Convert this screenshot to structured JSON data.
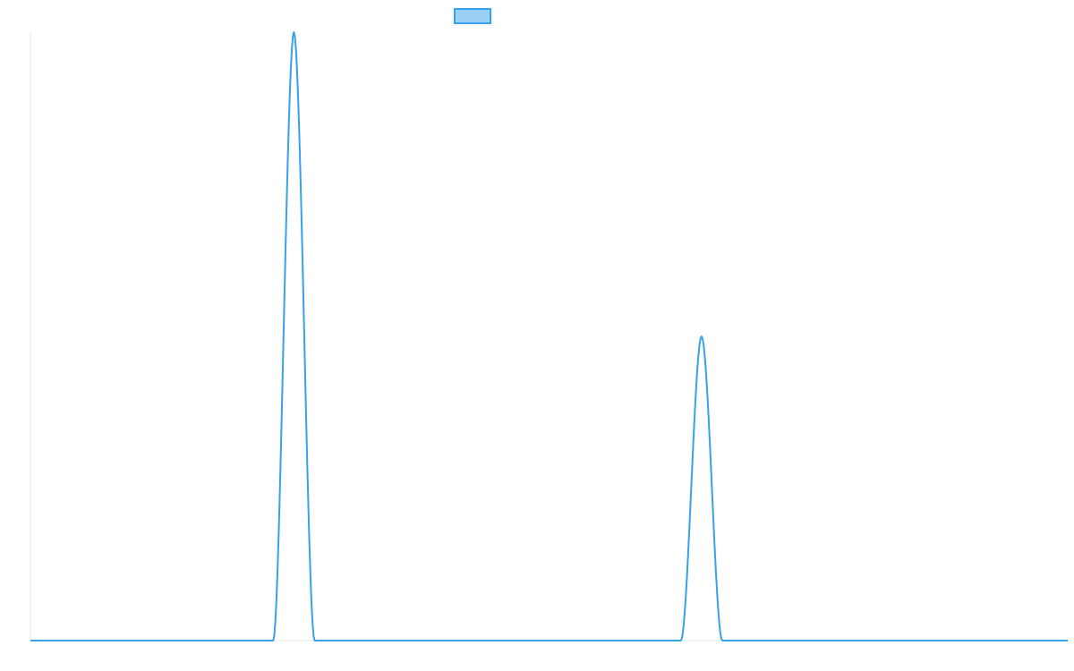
{
  "chart_data": {
    "type": "line",
    "title": "",
    "xlabel": "",
    "ylabel": "",
    "legend": {
      "placement": "top-center",
      "entries": [
        {
          "label": ""
        }
      ]
    },
    "grid": false,
    "xlim": [
      0,
      1000
    ],
    "ylim": [
      0,
      100
    ],
    "series": [
      {
        "color": "#36A2EB",
        "fill_color": "#9AD0F5",
        "peaks": [
          {
            "center": 254,
            "height": 100,
            "half_width": 20
          },
          {
            "center": 647,
            "height": 50,
            "half_width": 20
          }
        ],
        "baseline": 0
      }
    ]
  }
}
